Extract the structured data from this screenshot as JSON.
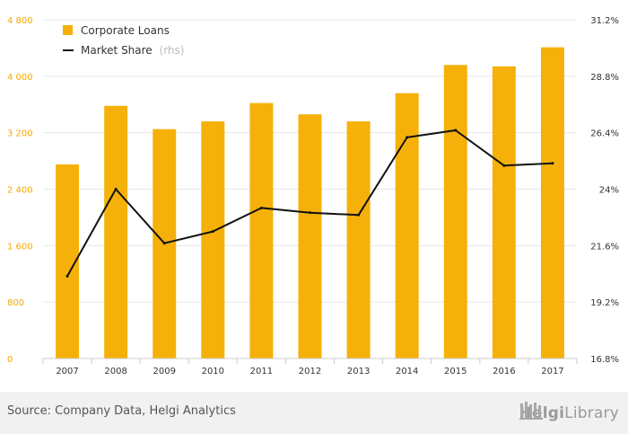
{
  "chart_data": {
    "type": "bar",
    "categories": [
      "2007",
      "2008",
      "2009",
      "2010",
      "2011",
      "2012",
      "2013",
      "2014",
      "2015",
      "2016",
      "2017"
    ],
    "series": [
      {
        "name": "Corporate Loans",
        "type": "bar",
        "axis": "left",
        "color": "#f5b10a",
        "values": [
          2750,
          3580,
          3250,
          3360,
          3620,
          3460,
          3360,
          3760,
          4160,
          4140,
          4410
        ]
      },
      {
        "name": "Market Share",
        "name_suffix": "(rhs)",
        "type": "line",
        "axis": "right",
        "color": "#111111",
        "values": [
          20.3,
          24.0,
          21.7,
          22.2,
          23.2,
          23.0,
          22.9,
          26.2,
          26.5,
          25.0,
          25.1
        ]
      }
    ],
    "y_left": {
      "range": [
        0,
        4800
      ],
      "ticks": [
        0,
        800,
        1600,
        2400,
        3200,
        4000,
        4800
      ],
      "tick_labels": [
        "0",
        "800",
        "1 600",
        "2 400",
        "3 200",
        "4 000",
        "4 800"
      ],
      "label_color": "#f5a800"
    },
    "y_right": {
      "range": [
        16.8,
        31.2
      ],
      "ticks": [
        16.8,
        19.2,
        21.6,
        24.0,
        26.4,
        28.8,
        31.2
      ],
      "tick_labels": [
        "16.8%",
        "19.2%",
        "21.6%",
        "24%",
        "26.4%",
        "28.8%",
        "31.2%"
      ]
    },
    "legend": {
      "position": "top-left"
    },
    "grid": true
  },
  "footer": {
    "source": "Source: Company Data, Helgi Analytics",
    "logo_part1": "Helgi",
    "logo_part2": "Library"
  },
  "icons": {
    "logo": "library-columns-icon"
  },
  "colors": {
    "bar": "#f5b10a",
    "line": "#111111",
    "grid": "#e6e6e6",
    "footer_bg": "#f1f1f1"
  }
}
